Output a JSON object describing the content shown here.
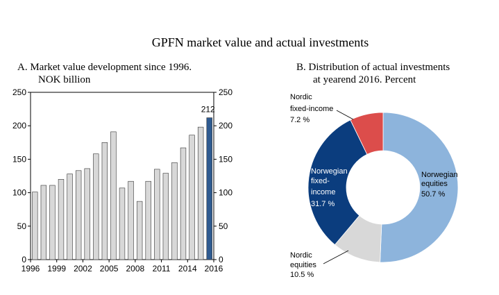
{
  "title": "GPFN market value and actual investments",
  "chart_data": [
    {
      "type": "bar",
      "title_lines": [
        "A.  Market value development since 1996.",
        "NOK billion"
      ],
      "x": [
        1996,
        1997,
        1998,
        1999,
        2000,
        2001,
        2002,
        2003,
        2004,
        2005,
        2006,
        2007,
        2008,
        2009,
        2010,
        2011,
        2012,
        2013,
        2014,
        2015,
        2016
      ],
      "values": [
        101,
        111,
        111,
        120,
        128,
        133,
        136,
        158,
        175,
        191,
        107,
        117,
        87,
        117,
        135,
        129,
        145,
        167,
        186,
        198,
        212
      ],
      "xticks": [
        "1996",
        "1999",
        "2002",
        "2005",
        "2008",
        "2011",
        "2014",
        "2016"
      ],
      "yticks": [
        "0",
        "50",
        "100",
        "150",
        "200",
        "250"
      ],
      "ylim": [
        0,
        250
      ],
      "annotation": "212",
      "bar_color": "#d8d8d8",
      "highlight_color": "#2f5b91",
      "highlight_year": 2016,
      "grid": false
    },
    {
      "type": "pie",
      "title_lines": [
        "B.  Distribution of actual investments",
        "at yearend 2016. Percent"
      ],
      "slices": [
        {
          "label_lines": [
            "Norwegian",
            "equities",
            "50.7 %"
          ],
          "value": 50.7,
          "color": "#8db4dc"
        },
        {
          "label_lines": [
            "Nordic",
            "equities",
            "10.5 %"
          ],
          "value": 10.5,
          "color": "#d8d8d8"
        },
        {
          "label_lines": [
            "Norwegian",
            "fixed-",
            "income",
            "31.7 %"
          ],
          "value": 31.7,
          "color": "#0b3d7e"
        },
        {
          "label_lines": [
            "Nordic",
            "fixed-income",
            "7.2 %"
          ],
          "value": 7.2,
          "color": "#dc4d4b"
        }
      ]
    }
  ]
}
